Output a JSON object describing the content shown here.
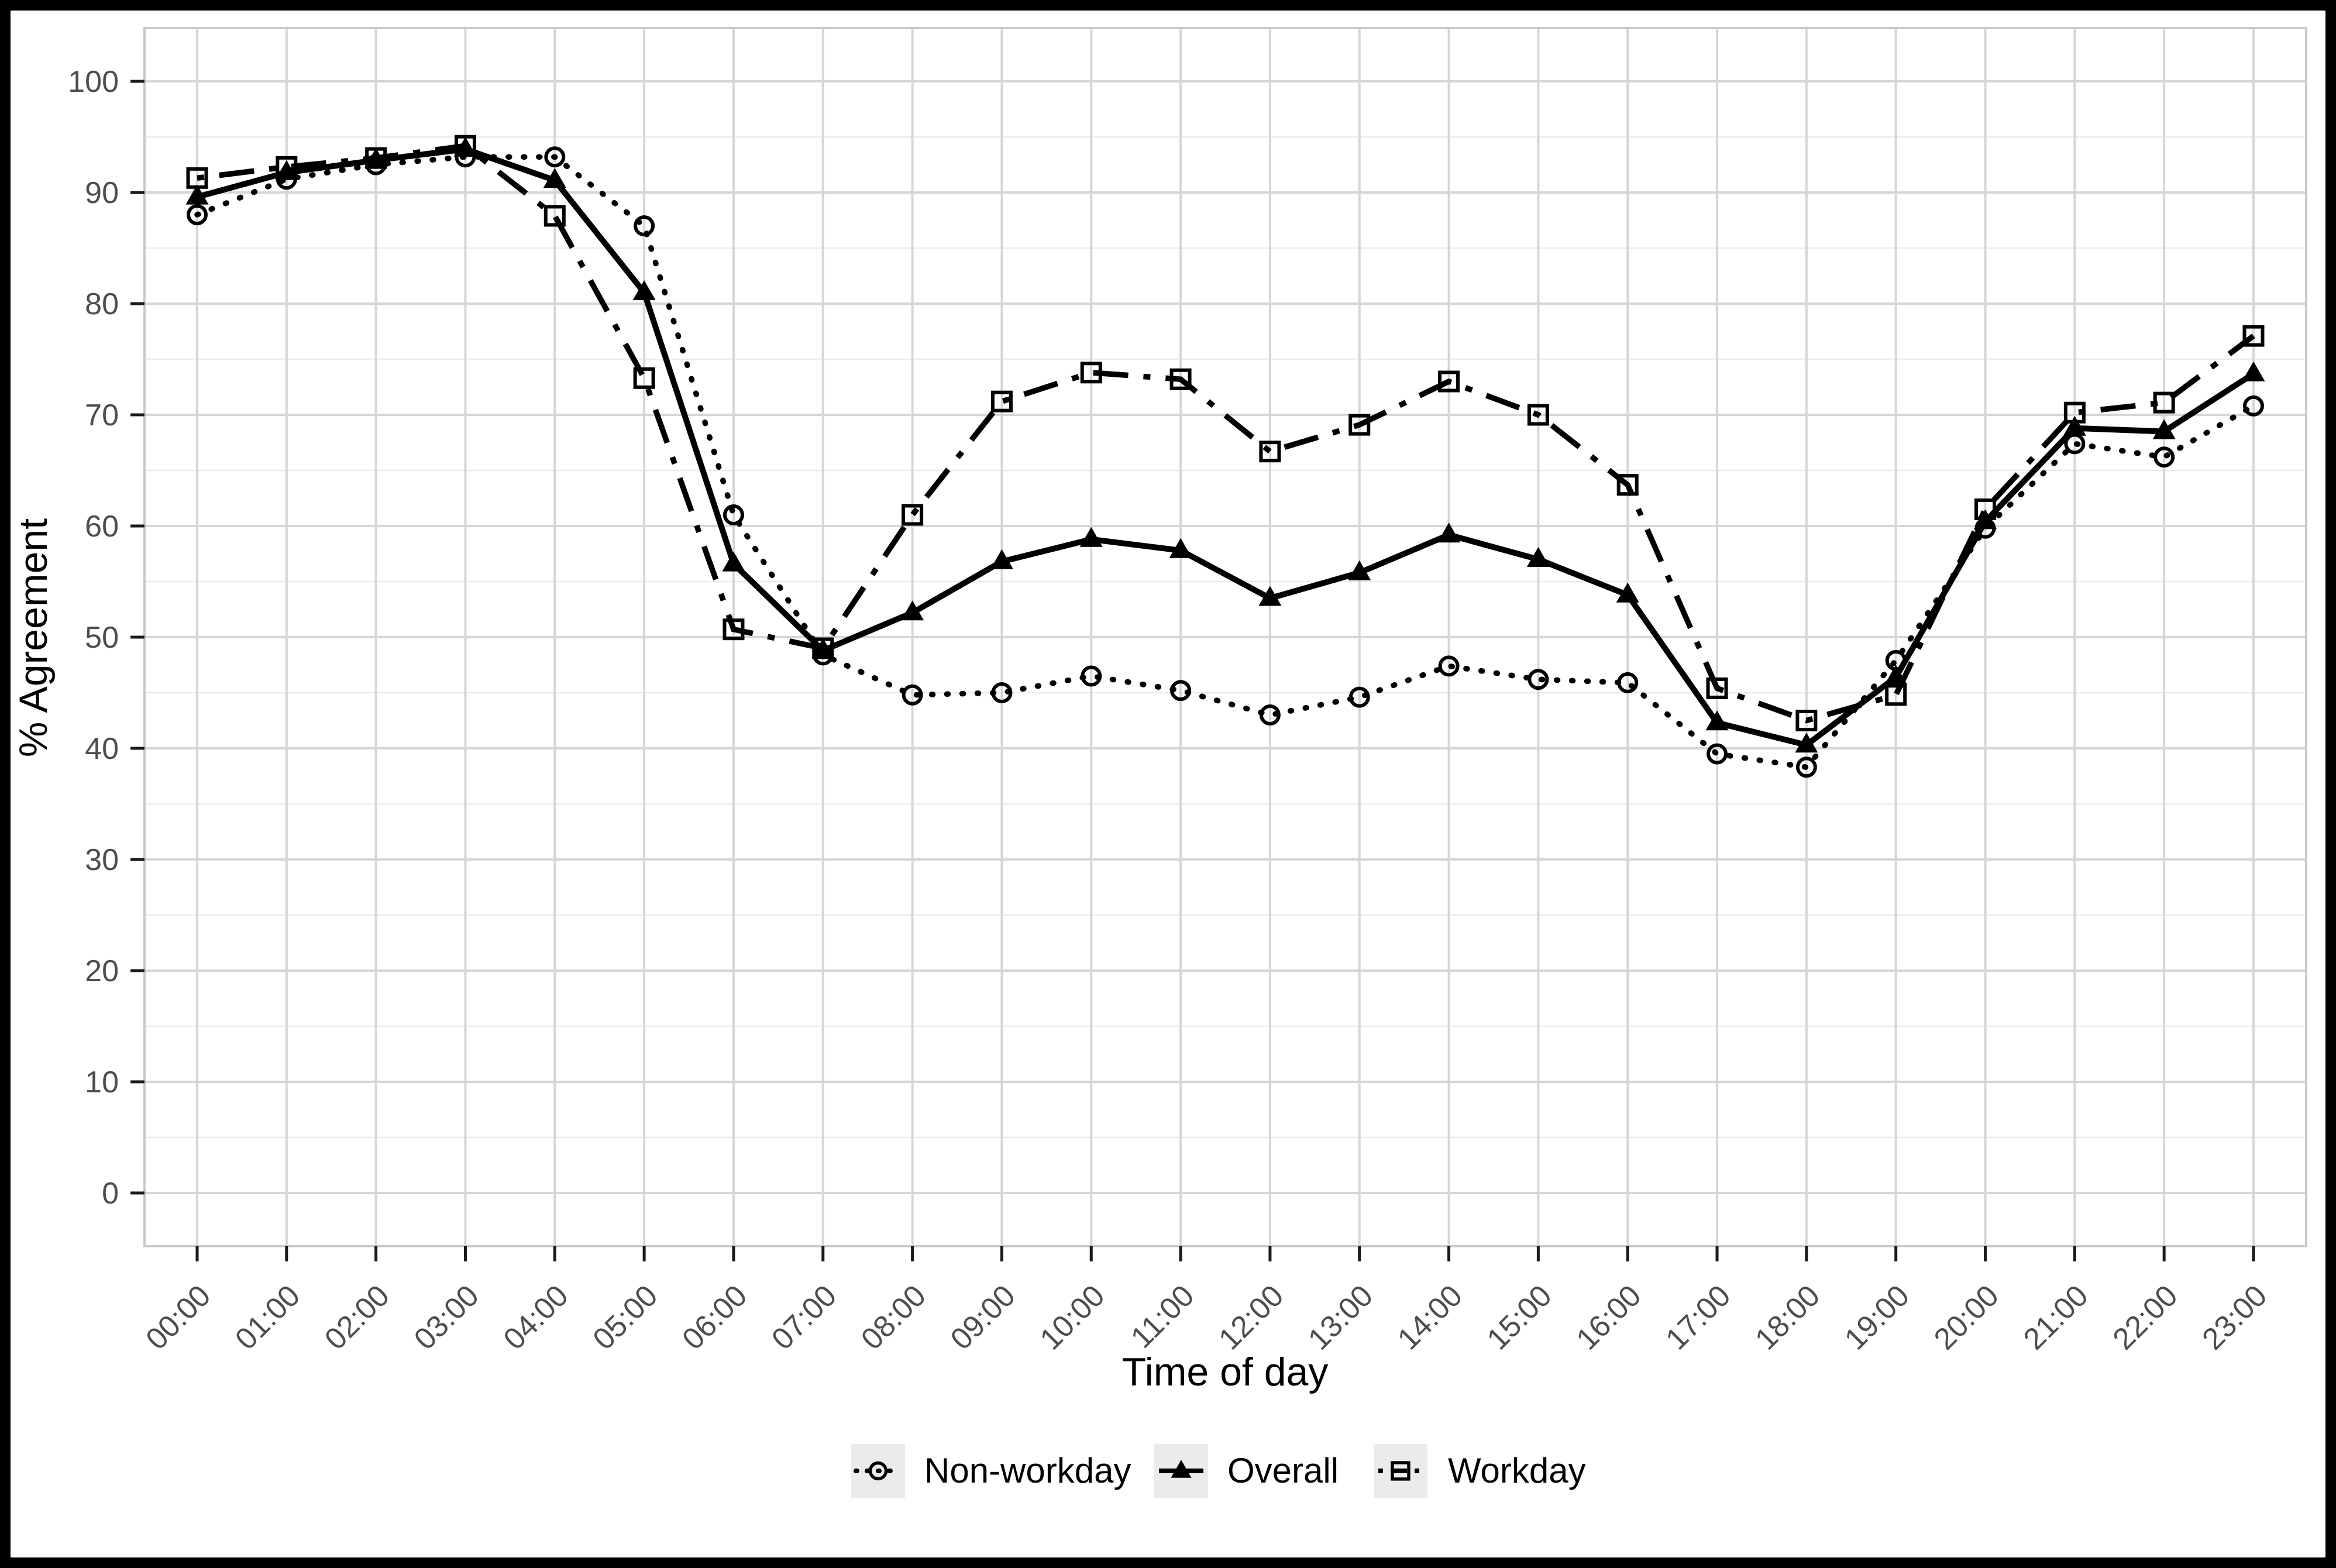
{
  "figure": {
    "title": "",
    "xlabel": "Time of day",
    "ylabel": "% Agreement"
  },
  "chart_data": {
    "type": "line",
    "title": "",
    "xlabel": "Time of day",
    "ylabel": "% Agreement",
    "x_categories": [
      "00:00",
      "01:00",
      "02:00",
      "03:00",
      "04:00",
      "05:00",
      "06:00",
      "07:00",
      "08:00",
      "09:00",
      "10:00",
      "11:00",
      "12:00",
      "13:00",
      "14:00",
      "15:00",
      "16:00",
      "17:00",
      "18:00",
      "19:00",
      "20:00",
      "21:00",
      "22:00",
      "23:00"
    ],
    "yticks": [
      0,
      10,
      20,
      30,
      40,
      50,
      60,
      70,
      80,
      90,
      100
    ],
    "ylim": [
      0,
      100
    ],
    "grid": {
      "major": true,
      "minor_horizontal": true
    },
    "legend_position": "bottom-center",
    "series": [
      {
        "name": "Non-workday",
        "linestyle": "dotted",
        "marker": "open-circle",
        "values": [
          88.0,
          91.2,
          92.5,
          93.2,
          93.2,
          87.0,
          61.0,
          48.4,
          44.8,
          45.0,
          46.5,
          45.2,
          43.0,
          44.6,
          47.4,
          46.2,
          45.9,
          39.5,
          38.3,
          47.9,
          59.8,
          67.4,
          66.2,
          70.8
        ]
      },
      {
        "name": "Overall",
        "linestyle": "solid",
        "marker": "filled-triangle",
        "values": [
          89.6,
          91.8,
          92.9,
          93.9,
          91.1,
          81.0,
          56.6,
          48.8,
          52.2,
          56.8,
          58.8,
          57.8,
          53.5,
          55.8,
          59.2,
          57.0,
          53.8,
          42.3,
          40.3,
          46.4,
          60.4,
          68.8,
          68.5,
          73.7
        ]
      },
      {
        "name": "Workday",
        "linestyle": "dotdash",
        "marker": "open-square",
        "values": [
          91.3,
          92.3,
          93.1,
          94.2,
          87.9,
          73.3,
          50.7,
          49.0,
          61.0,
          71.2,
          73.8,
          73.2,
          66.7,
          69.1,
          73.0,
          70.0,
          63.7,
          45.4,
          42.5,
          44.8,
          61.5,
          70.2,
          71.1,
          77.1
        ]
      }
    ]
  },
  "style": {
    "series_color": "#000000",
    "grid_major_color": "#d6d6d6",
    "grid_minor_color": "#ebebeb",
    "panel_border_color": "#c9c9c9",
    "tick_color": "#1a1a1a",
    "tick_label_color": "#4d4d4d",
    "axis_title_color": "#000000",
    "legend_key_bg": "#ebebeb",
    "legend_text_color": "#000000",
    "frame_color": "#000000",
    "background": "#ffffff"
  }
}
